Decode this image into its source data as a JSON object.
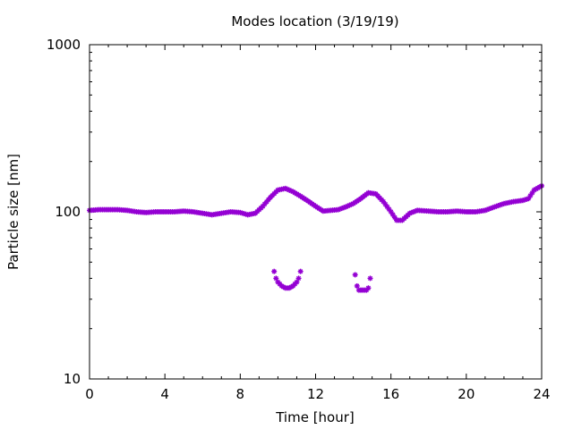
{
  "chart_data": {
    "type": "scatter",
    "title": "Modes location (3/19/19)",
    "xlabel": "Time [hour]",
    "ylabel": "Particle size [nm]",
    "xlim": [
      0,
      24
    ],
    "ylim": [
      10,
      1000
    ],
    "yscale": "log",
    "grid": false,
    "legend": "none",
    "marker": "asterisk",
    "color": "#9400d3",
    "xticks": [
      0,
      4,
      8,
      12,
      16,
      20,
      24
    ],
    "xtick_labels": [
      "0",
      "4",
      "8",
      "12",
      "16",
      "20",
      "24"
    ],
    "yticks": [
      10,
      100,
      1000
    ],
    "ytick_labels": [
      "10",
      "100",
      "1000"
    ],
    "series": [
      {
        "x": [
          0,
          0.5,
          1,
          1.5,
          2,
          2.5,
          3,
          3.5,
          4,
          4.5,
          5,
          5.5,
          6,
          6.5,
          7,
          7.5,
          8,
          8.4,
          8.8,
          9.2,
          9.6,
          10,
          10.4,
          10.8,
          11.2,
          11.6,
          12,
          12.4,
          12.8,
          13.2,
          13.6,
          14,
          14.4,
          14.8,
          15.2,
          15.6,
          16,
          16.3,
          16.6,
          17,
          17.4,
          18,
          18.5,
          19,
          19.5,
          20,
          20.5,
          21,
          21.5,
          22,
          22.5,
          23,
          23.3,
          23.6,
          24
        ],
        "y": [
          102,
          103,
          103,
          103,
          102,
          100,
          99,
          100,
          100,
          100,
          101,
          100,
          98,
          96,
          98,
          100,
          99,
          96,
          98,
          108,
          122,
          135,
          138,
          132,
          124,
          116,
          108,
          101,
          102,
          103,
          107,
          112,
          120,
          130,
          128,
          115,
          100,
          89,
          89,
          98,
          102,
          101,
          100,
          100,
          101,
          100,
          100,
          102,
          107,
          112,
          115,
          117,
          120,
          135,
          143
        ]
      },
      {
        "x": [
          9.8,
          9.9,
          10.0,
          10.2,
          10.4,
          10.6,
          10.8,
          11.0,
          11.1,
          11.2
        ],
        "y": [
          44,
          40,
          38,
          36,
          35,
          35,
          36,
          38,
          40,
          44
        ]
      },
      {
        "x": [
          14.1,
          14.2,
          14.3,
          14.5,
          14.7,
          14.8,
          14.9
        ],
        "y": [
          42,
          36,
          34,
          34,
          34,
          35,
          40
        ]
      }
    ]
  }
}
